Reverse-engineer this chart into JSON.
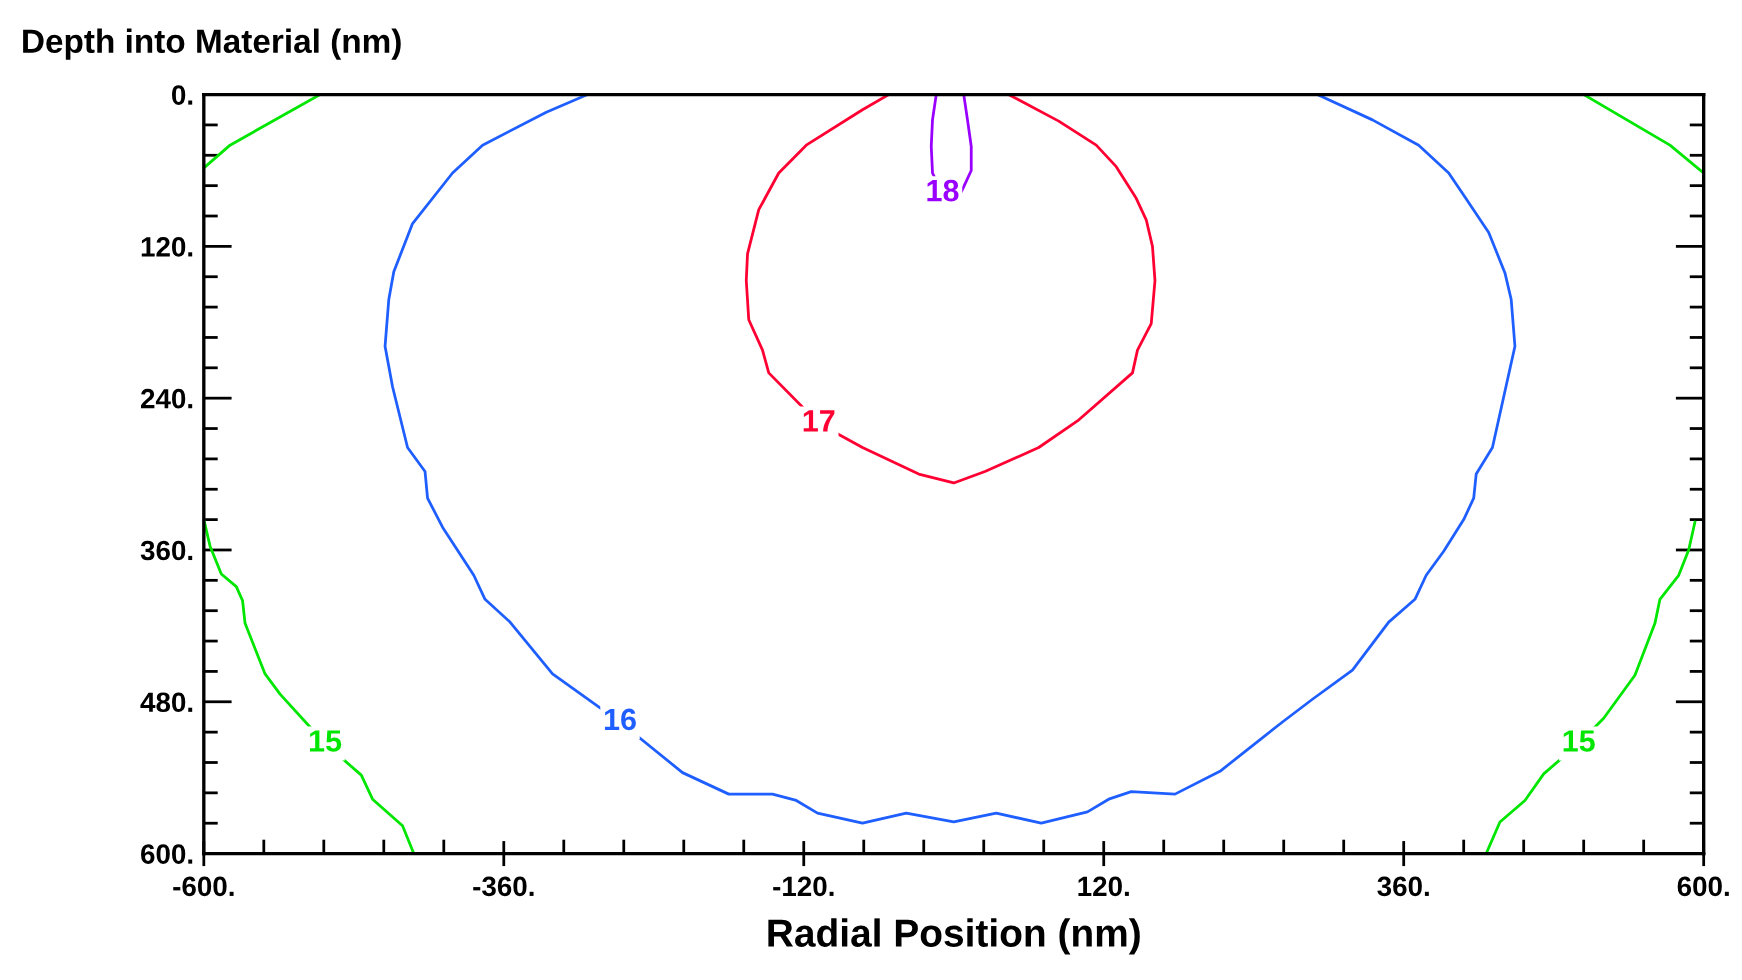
{
  "chart_data": {
    "type": "line",
    "ylabel": "Depth into Material (nm)",
    "xlabel": "Radial Position (nm)",
    "xlim": [
      -600,
      600
    ],
    "ylim": [
      600,
      0
    ],
    "xticks": [
      {
        "value": -600,
        "label": "-600."
      },
      {
        "value": -552,
        "label": null
      },
      {
        "value": -504,
        "label": null
      },
      {
        "value": -456,
        "label": null
      },
      {
        "value": -408,
        "label": null
      },
      {
        "value": -360,
        "label": "-360."
      },
      {
        "value": -312,
        "label": null
      },
      {
        "value": -264,
        "label": null
      },
      {
        "value": -216,
        "label": null
      },
      {
        "value": -168,
        "label": null
      },
      {
        "value": -120,
        "label": "-120."
      },
      {
        "value": -72,
        "label": null
      },
      {
        "value": -24,
        "label": null
      },
      {
        "value": 24,
        "label": null
      },
      {
        "value": 72,
        "label": null
      },
      {
        "value": 120,
        "label": "120."
      },
      {
        "value": 168,
        "label": null
      },
      {
        "value": 216,
        "label": null
      },
      {
        "value": 264,
        "label": null
      },
      {
        "value": 312,
        "label": null
      },
      {
        "value": 360,
        "label": "360."
      },
      {
        "value": 408,
        "label": null
      },
      {
        "value": 456,
        "label": null
      },
      {
        "value": 504,
        "label": null
      },
      {
        "value": 552,
        "label": null
      },
      {
        "value": 600,
        "label": "600."
      }
    ],
    "yticks": [
      {
        "value": 0,
        "label": "0."
      },
      {
        "value": 24,
        "label": null
      },
      {
        "value": 48,
        "label": null
      },
      {
        "value": 72,
        "label": null
      },
      {
        "value": 96,
        "label": null
      },
      {
        "value": 120,
        "label": "120."
      },
      {
        "value": 144,
        "label": null
      },
      {
        "value": 168,
        "label": null
      },
      {
        "value": 192,
        "label": null
      },
      {
        "value": 216,
        "label": null
      },
      {
        "value": 240,
        "label": "240."
      },
      {
        "value": 264,
        "label": null
      },
      {
        "value": 288,
        "label": null
      },
      {
        "value": 312,
        "label": null
      },
      {
        "value": 336,
        "label": null
      },
      {
        "value": 360,
        "label": "360."
      },
      {
        "value": 384,
        "label": null
      },
      {
        "value": 408,
        "label": null
      },
      {
        "value": 432,
        "label": null
      },
      {
        "value": 456,
        "label": null
      },
      {
        "value": 480,
        "label": "480."
      },
      {
        "value": 504,
        "label": null
      },
      {
        "value": 528,
        "label": null
      },
      {
        "value": 552,
        "label": null
      },
      {
        "value": 576,
        "label": null
      },
      {
        "value": 600,
        "label": "600."
      }
    ],
    "grid": false,
    "legend": false,
    "marker": "none",
    "line_style": "solid",
    "series": [
      {
        "color": "#00e600",
        "x": [
          -507,
          -579,
          -600
        ],
        "values": [
          0,
          40,
          58
        ]
      },
      {
        "color": "#00e600",
        "x": [
          504,
          573,
          600
        ],
        "values": [
          0,
          40,
          62
        ]
      },
      {
        "color": "#00e600",
        "x": [
          -600,
          -595,
          -586,
          -574,
          -569,
          -567,
          -551,
          -539,
          -503,
          -474,
          -465,
          -441,
          -432
        ],
        "values": [
          336,
          357,
          379,
          389,
          400,
          418,
          458,
          474,
          513,
          538,
          557,
          578,
          600
        ]
      },
      {
        "color": "#00e600",
        "x": [
          426,
          437,
          457,
          472,
          500,
          520,
          545,
          561,
          565,
          580,
          588,
          593
        ],
        "values": [
          600,
          575,
          558,
          537,
          513,
          493,
          459,
          418,
          399,
          380,
          360,
          338
        ]
      },
      {
        "color": "#1f5fff",
        "x": [
          -293,
          -326,
          -377,
          -401,
          -433,
          -448,
          -452,
          -455,
          -449,
          -437,
          -423,
          -421,
          -409,
          -384,
          -375,
          -355,
          -321,
          -267,
          -217,
          -180,
          -145,
          -126,
          -109,
          -73,
          -38,
          0,
          34,
          70,
          107,
          124,
          142,
          177,
          213,
          236,
          263,
          287,
          319,
          348,
          369,
          378,
          392,
          408,
          416,
          418,
          431,
          449,
          446,
          441,
          428,
          409,
          396,
          372,
          335,
          291
        ],
        "values": [
          0,
          14,
          40,
          62,
          102,
          140,
          162,
          199,
          231,
          279,
          298,
          319,
          342,
          380,
          399,
          417,
          458,
          496,
          536,
          553,
          553,
          558,
          568,
          576,
          568,
          575,
          568,
          576,
          567,
          557,
          551,
          553,
          535,
          517,
          496,
          478,
          455,
          417,
          399,
          380,
          361,
          336,
          319,
          300,
          279,
          199,
          162,
          141,
          109,
          81,
          62,
          40,
          20,
          0
        ]
      },
      {
        "color": "#ff0033",
        "x": [
          -52,
          -73,
          -118,
          -140,
          -156,
          -165,
          -166,
          -164,
          -153,
          -148,
          -108,
          -73,
          -28,
          0,
          25,
          68,
          99,
          143,
          147,
          158,
          161,
          159,
          154,
          146,
          130,
          114,
          84,
          44
        ],
        "values": [
          0,
          12,
          40,
          62,
          91,
          126,
          147,
          178,
          202,
          220,
          260,
          279,
          300,
          307,
          298,
          279,
          258,
          220,
          202,
          181,
          147,
          120,
          99,
          82,
          57,
          40,
          21,
          0
        ]
      },
      {
        "color": "#9900ff",
        "x": [
          -14,
          -17,
          -18,
          -17,
          -9,
          0,
          7,
          14,
          14,
          11,
          8
        ],
        "values": [
          0,
          20,
          41,
          62,
          78,
          88,
          75,
          60,
          41,
          20,
          0
        ]
      }
    ],
    "annotations": [
      {
        "text": "15",
        "x": -503,
        "y": 513
      },
      {
        "text": "16",
        "x": -267,
        "y": 496
      },
      {
        "text": "17",
        "x": -108,
        "y": 260
      },
      {
        "text": "18",
        "x": -9,
        "y": 78
      },
      {
        "text": "15",
        "x": 500,
        "y": 513
      }
    ]
  }
}
